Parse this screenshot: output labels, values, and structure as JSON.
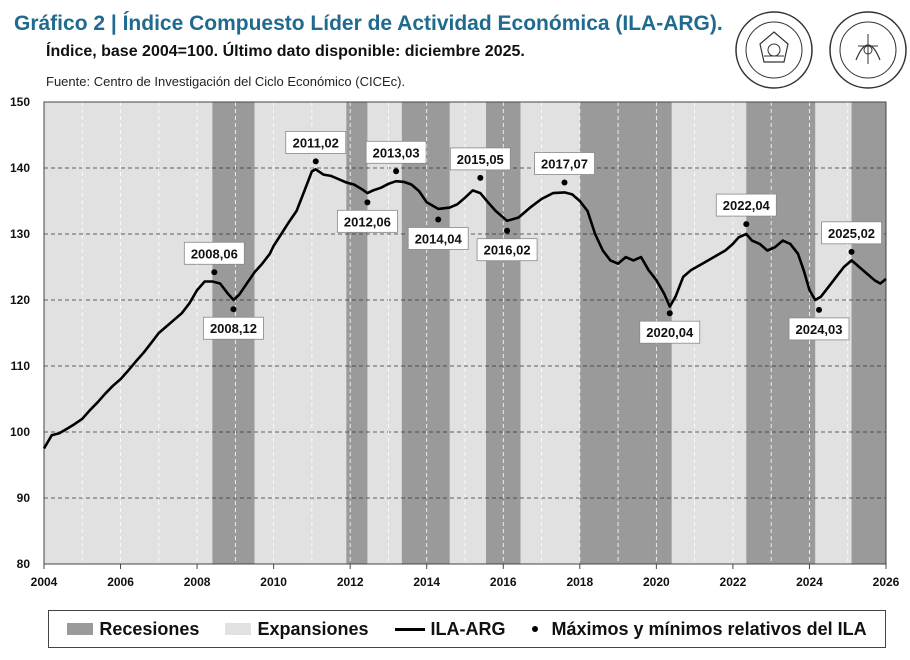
{
  "header": {
    "title": "Gráfico 2 | Índice Compuesto Líder de Actividad Económica (ILA-ARG).",
    "subtitle": "Índice, base 2004=100. Último dato disponible: diciembre 2025.",
    "source": "Fuente: Centro de Investigación del Ciclo Económico (CICEc)."
  },
  "logos": [
    {
      "name": "bolsa-de-comercio-santa-fe-seal",
      "text": "BOLSA DE COMERCIO DE SANTA FE"
    },
    {
      "name": "bolsa-de-comercio-rosario-seal",
      "text": "BOLSA DE COMERCIO DE ROSARIO"
    }
  ],
  "colors": {
    "title": "#1f6a8e",
    "recession": "#9a9a9a",
    "expansion": "#e1e1e1",
    "line": "#000000"
  },
  "legend": {
    "recessions": "Recesiones",
    "expansions": "Expansiones",
    "line": "ILA-ARG",
    "points": "Máximos y mínimos relativos del ILA"
  },
  "chart_data": {
    "type": "line",
    "xlim": [
      2004,
      2026
    ],
    "ylim": [
      80,
      150
    ],
    "x_ticks": [
      "2004",
      "2006",
      "2008",
      "2010",
      "2012",
      "2014",
      "2016",
      "2018",
      "2020",
      "2022",
      "2024",
      "2026"
    ],
    "y_ticks": [
      "80",
      "90",
      "100",
      "110",
      "120",
      "130",
      "140",
      "150"
    ],
    "grid": "horizontal dashed",
    "recessions": [
      [
        2008.4,
        2009.5
      ],
      [
        2011.9,
        2012.45
      ],
      [
        2013.35,
        2014.6
      ],
      [
        2015.55,
        2016.45
      ],
      [
        2018.0,
        2020.4
      ],
      [
        2022.35,
        2024.15
      ],
      [
        2025.1,
        2026.0
      ]
    ],
    "series": [
      {
        "name": "ILA-ARG",
        "points": [
          [
            2004.0,
            97.5
          ],
          [
            2004.2,
            99.5
          ],
          [
            2004.4,
            99.8
          ],
          [
            2004.6,
            100.5
          ],
          [
            2004.8,
            101.2
          ],
          [
            2005.0,
            102.0
          ],
          [
            2005.2,
            103.3
          ],
          [
            2005.4,
            104.5
          ],
          [
            2005.6,
            105.8
          ],
          [
            2005.8,
            107.0
          ],
          [
            2006.0,
            108.0
          ],
          [
            2006.2,
            109.3
          ],
          [
            2006.4,
            110.7
          ],
          [
            2006.6,
            112.0
          ],
          [
            2006.8,
            113.5
          ],
          [
            2007.0,
            115.0
          ],
          [
            2007.2,
            116.0
          ],
          [
            2007.4,
            117.0
          ],
          [
            2007.6,
            118.0
          ],
          [
            2007.8,
            119.5
          ],
          [
            2008.0,
            121.5
          ],
          [
            2008.2,
            122.8
          ],
          [
            2008.4,
            122.8
          ],
          [
            2008.6,
            122.5
          ],
          [
            2008.8,
            121.0
          ],
          [
            2008.95,
            120.0
          ],
          [
            2009.1,
            120.8
          ],
          [
            2009.3,
            122.5
          ],
          [
            2009.5,
            124.2
          ],
          [
            2009.7,
            125.5
          ],
          [
            2009.9,
            127.0
          ],
          [
            2010.0,
            128.2
          ],
          [
            2010.2,
            130.0
          ],
          [
            2010.4,
            131.8
          ],
          [
            2010.6,
            133.5
          ],
          [
            2010.8,
            136.5
          ],
          [
            2011.0,
            139.5
          ],
          [
            2011.1,
            139.8
          ],
          [
            2011.3,
            139.0
          ],
          [
            2011.5,
            138.8
          ],
          [
            2011.7,
            138.3
          ],
          [
            2011.9,
            137.8
          ],
          [
            2012.1,
            137.5
          ],
          [
            2012.3,
            136.8
          ],
          [
            2012.45,
            136.2
          ],
          [
            2012.6,
            136.6
          ],
          [
            2012.8,
            137.0
          ],
          [
            2013.0,
            137.6
          ],
          [
            2013.2,
            138.0
          ],
          [
            2013.4,
            137.9
          ],
          [
            2013.6,
            137.5
          ],
          [
            2013.8,
            136.5
          ],
          [
            2014.0,
            134.8
          ],
          [
            2014.3,
            133.8
          ],
          [
            2014.6,
            134.0
          ],
          [
            2014.8,
            134.5
          ],
          [
            2015.0,
            135.5
          ],
          [
            2015.2,
            136.6
          ],
          [
            2015.4,
            136.2
          ],
          [
            2015.6,
            134.8
          ],
          [
            2015.8,
            133.5
          ],
          [
            2016.1,
            132.0
          ],
          [
            2016.4,
            132.5
          ],
          [
            2016.7,
            134.0
          ],
          [
            2017.0,
            135.3
          ],
          [
            2017.3,
            136.2
          ],
          [
            2017.6,
            136.3
          ],
          [
            2017.8,
            136.0
          ],
          [
            2018.0,
            135.0
          ],
          [
            2018.2,
            133.5
          ],
          [
            2018.4,
            130.0
          ],
          [
            2018.6,
            127.5
          ],
          [
            2018.8,
            126.0
          ],
          [
            2019.0,
            125.5
          ],
          [
            2019.2,
            126.5
          ],
          [
            2019.4,
            126.0
          ],
          [
            2019.6,
            126.5
          ],
          [
            2019.8,
            124.5
          ],
          [
            2020.0,
            123.0
          ],
          [
            2020.2,
            121.0
          ],
          [
            2020.35,
            119.0
          ],
          [
            2020.5,
            120.5
          ],
          [
            2020.7,
            123.5
          ],
          [
            2020.9,
            124.5
          ],
          [
            2021.2,
            125.5
          ],
          [
            2021.5,
            126.5
          ],
          [
            2021.8,
            127.5
          ],
          [
            2022.0,
            128.5
          ],
          [
            2022.15,
            129.5
          ],
          [
            2022.35,
            130.0
          ],
          [
            2022.5,
            129.0
          ],
          [
            2022.7,
            128.5
          ],
          [
            2022.9,
            127.5
          ],
          [
            2023.1,
            128.0
          ],
          [
            2023.3,
            129.0
          ],
          [
            2023.5,
            128.5
          ],
          [
            2023.7,
            127.0
          ],
          [
            2023.85,
            124.5
          ],
          [
            2024.0,
            121.5
          ],
          [
            2024.15,
            120.0
          ],
          [
            2024.3,
            120.5
          ],
          [
            2024.5,
            122.0
          ],
          [
            2024.7,
            123.5
          ],
          [
            2024.9,
            125.0
          ],
          [
            2025.1,
            126.0
          ],
          [
            2025.3,
            125.0
          ],
          [
            2025.5,
            124.0
          ],
          [
            2025.7,
            123.0
          ],
          [
            2025.85,
            122.5
          ],
          [
            2026.0,
            123.2
          ]
        ]
      }
    ],
    "extrema": [
      {
        "label": "2008,06",
        "x": 2008.45,
        "y": 124.2,
        "pos": "above"
      },
      {
        "label": "2008,12",
        "x": 2008.95,
        "y": 118.6,
        "pos": "below"
      },
      {
        "label": "2011,02",
        "x": 2011.1,
        "y": 141.0,
        "pos": "above"
      },
      {
        "label": "2012,06",
        "x": 2012.45,
        "y": 134.8,
        "pos": "below"
      },
      {
        "label": "2013,03",
        "x": 2013.2,
        "y": 139.5,
        "pos": "above"
      },
      {
        "label": "2014,04",
        "x": 2014.3,
        "y": 132.2,
        "pos": "below"
      },
      {
        "label": "2015,05",
        "x": 2015.4,
        "y": 138.5,
        "pos": "above"
      },
      {
        "label": "2016,02",
        "x": 2016.1,
        "y": 130.5,
        "pos": "below"
      },
      {
        "label": "2017,07",
        "x": 2017.6,
        "y": 137.8,
        "pos": "above"
      },
      {
        "label": "2020,04",
        "x": 2020.35,
        "y": 118.0,
        "pos": "below"
      },
      {
        "label": "2022,04",
        "x": 2022.35,
        "y": 131.5,
        "pos": "above"
      },
      {
        "label": "2024,03",
        "x": 2024.25,
        "y": 118.5,
        "pos": "below"
      },
      {
        "label": "2025,02",
        "x": 2025.1,
        "y": 127.3,
        "pos": "above"
      }
    ]
  }
}
